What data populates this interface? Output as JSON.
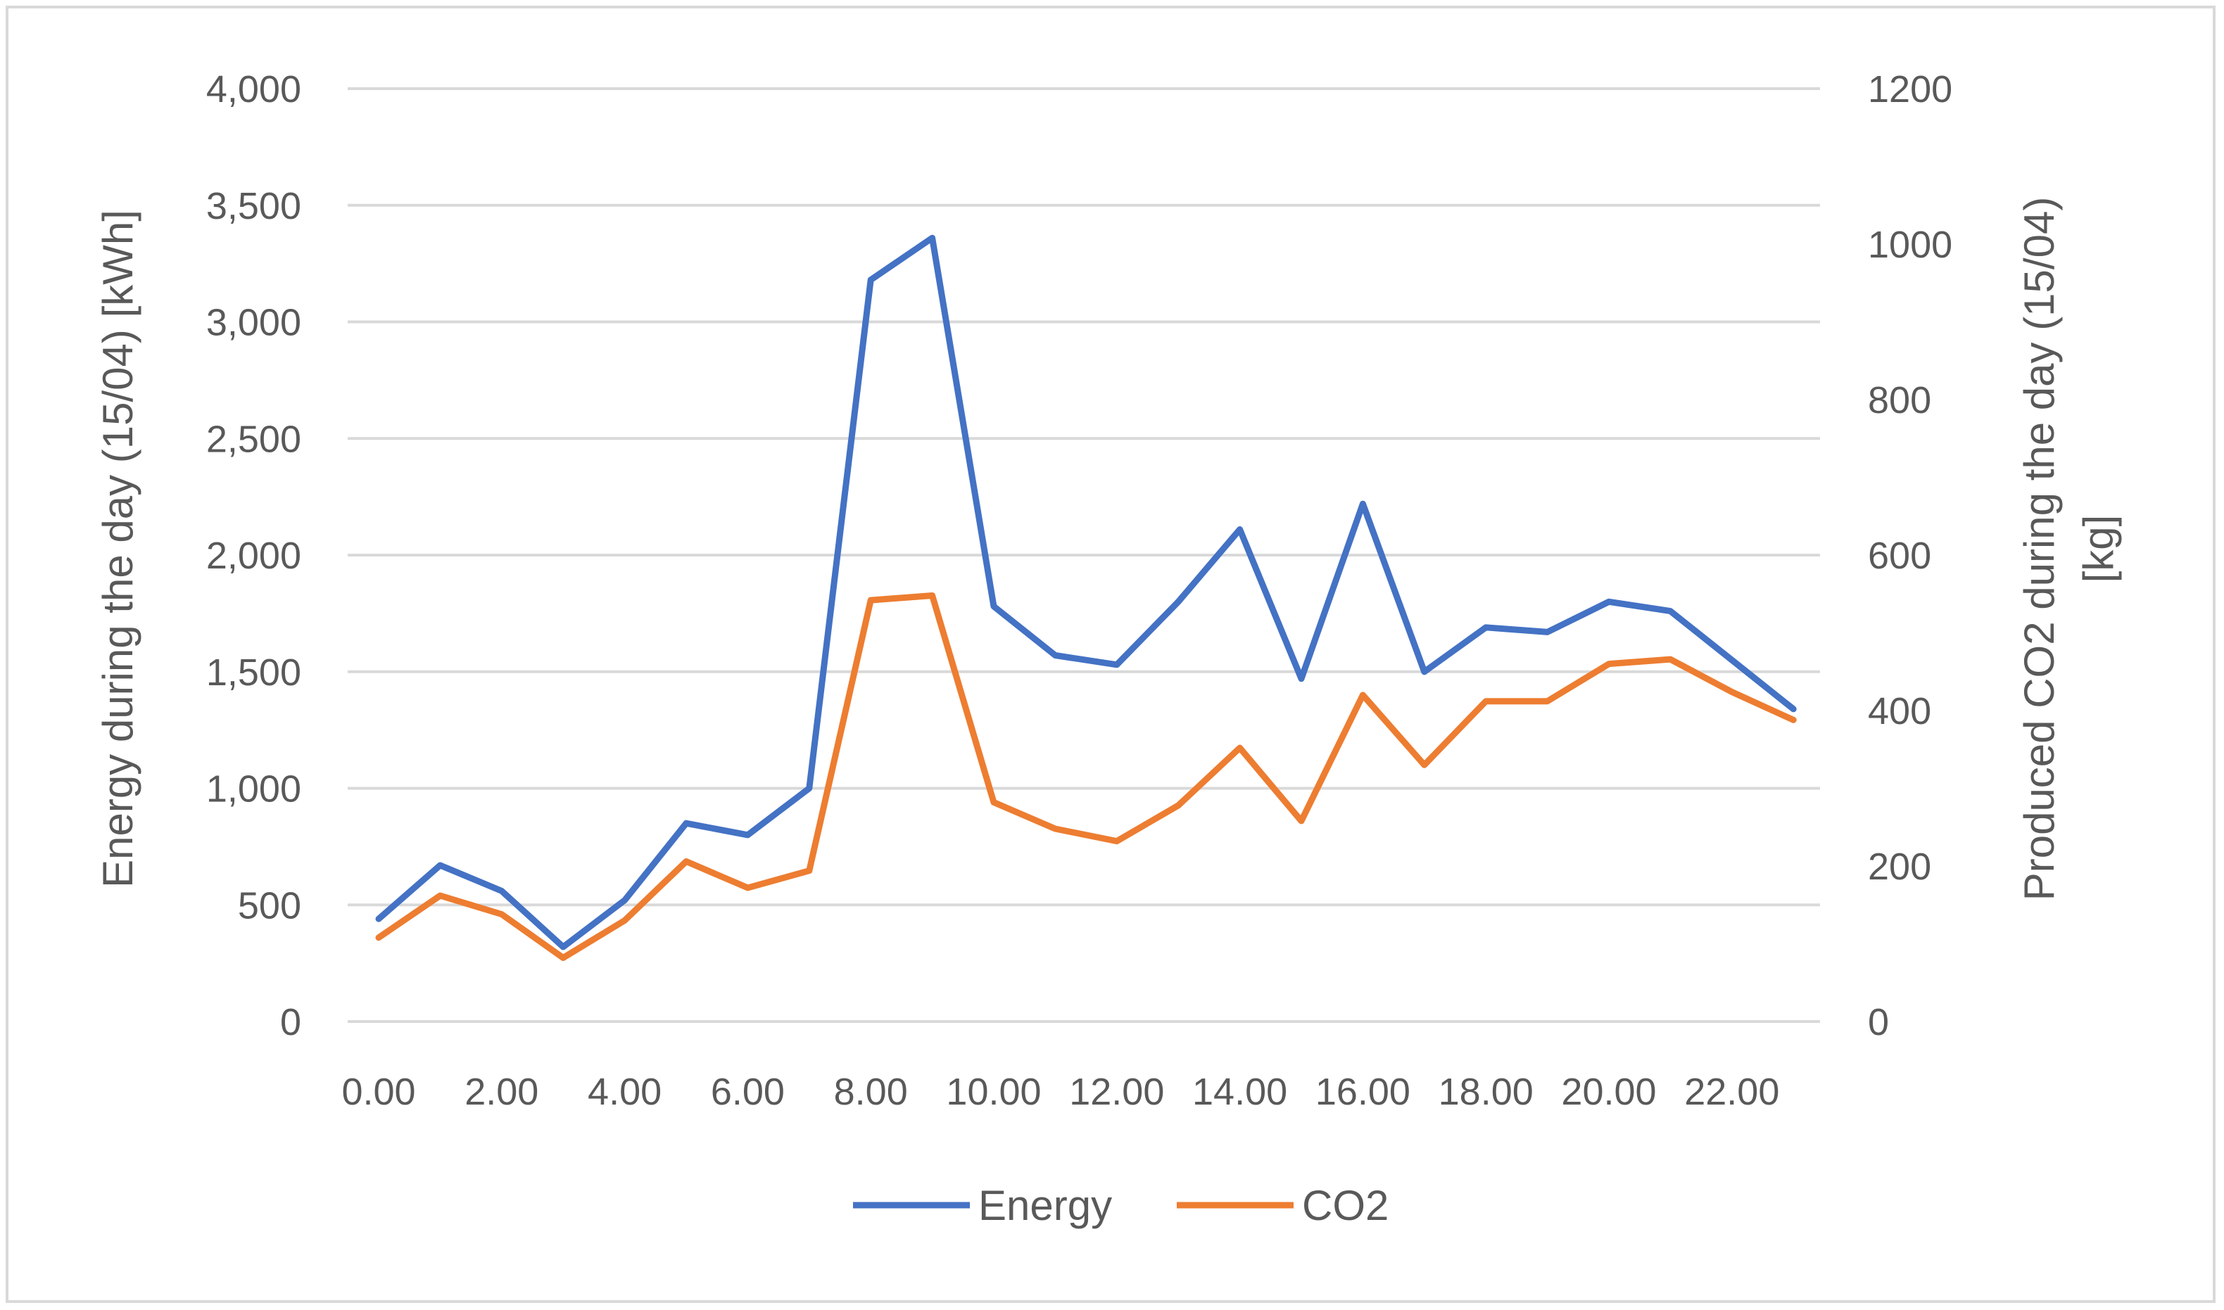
{
  "chart_data": {
    "type": "line",
    "x": [
      0,
      1,
      2,
      3,
      4,
      5,
      6,
      7,
      8,
      9,
      10,
      11,
      12,
      13,
      14,
      15,
      16,
      17,
      18,
      19,
      20,
      21,
      22,
      23
    ],
    "x_tick_labels": [
      "0.00",
      "2.00",
      "4.00",
      "6.00",
      "8.00",
      "10.00",
      "12.00",
      "14.00",
      "16.00",
      "18.00",
      "20.00",
      "22.00"
    ],
    "y_left": {
      "label": "Energy during the day (15/04) [kWh]",
      "lim": [
        0,
        4000
      ],
      "tick_labels": [
        "0",
        "500",
        "1,000",
        "1,500",
        "2,000",
        "2,500",
        "3,000",
        "3,500",
        "4,000"
      ],
      "ticks": [
        0,
        500,
        1000,
        1500,
        2000,
        2500,
        3000,
        3500,
        4000
      ]
    },
    "y_right": {
      "label_line1": "Produced CO2 during the day (15/04)",
      "label_line2": "[kg]",
      "lim": [
        0,
        1200
      ],
      "tick_labels": [
        "0",
        "200",
        "400",
        "600",
        "800",
        "1000",
        "1200"
      ],
      "ticks": [
        0,
        200,
        400,
        600,
        800,
        1000,
        1200
      ]
    },
    "series": [
      {
        "name": "Energy",
        "axis": "left",
        "color": "#4472c4",
        "values": [
          440,
          670,
          560,
          320,
          520,
          850,
          800,
          1000,
          3180,
          3360,
          1780,
          1570,
          1530,
          1800,
          2110,
          1470,
          2220,
          1500,
          1690,
          1670,
          1800,
          1760,
          1550,
          1340
        ]
      },
      {
        "name": "CO2",
        "axis": "right",
        "color": "#ed7d31",
        "values": [
          108,
          162,
          138,
          82,
          130,
          206,
          172,
          194,
          542,
          548,
          282,
          248,
          232,
          278,
          352,
          258,
          420,
          330,
          412,
          412,
          460,
          466,
          424,
          388
        ]
      }
    ],
    "grid": true,
    "legend_position": "bottom"
  }
}
